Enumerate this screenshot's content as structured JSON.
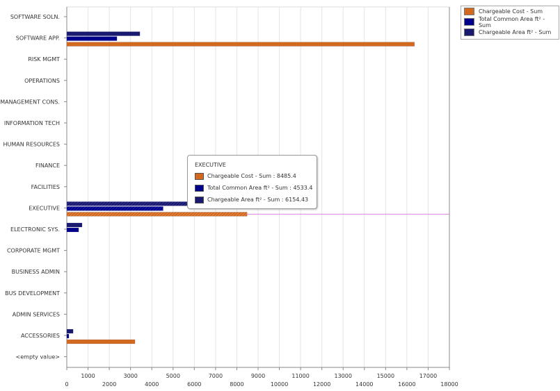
{
  "chart_data": {
    "type": "bar",
    "orientation": "horizontal",
    "categories": [
      "SOFTWARE SOLN.",
      "SOFTWARE APP.",
      "RISK MGMT",
      "OPERATIONS",
      "MANAGEMENT CONS.",
      "INFORMATION TECH",
      "HUMAN RESOURCES",
      "FINANCE",
      "FACILITIES",
      "EXECUTIVE",
      "ELECTRONIC SYS.",
      "CORPORATE MGMT",
      "BUSINESS ADMIN",
      "BUS DEVELOPMENT",
      "ADMIN SERVICES",
      "ACCESSORIES",
      "<empty value>"
    ],
    "series": [
      {
        "name": "Chargeable Cost - Sum",
        "color": "#d2691e",
        "values": [
          0,
          16360,
          0,
          0,
          0,
          0,
          0,
          0,
          0,
          8485.4,
          0,
          0,
          0,
          0,
          0,
          3210,
          0
        ]
      },
      {
        "name": "Total Common Area ft² - Sum",
        "color": "#00008b",
        "values": [
          0,
          2360,
          0,
          0,
          0,
          0,
          0,
          0,
          0,
          4533.4,
          560,
          0,
          0,
          0,
          0,
          100,
          0
        ]
      },
      {
        "name": "Chargeable Area ft² - Sum",
        "color": "#191970",
        "values": [
          0,
          3440,
          0,
          0,
          0,
          0,
          0,
          0,
          0,
          6154.43,
          720,
          0,
          0,
          0,
          0,
          300,
          0
        ]
      }
    ],
    "xlim": [
      0,
      18000
    ],
    "x_ticks": [
      0,
      1000,
      2000,
      3000,
      4000,
      5000,
      6000,
      7000,
      8000,
      9000,
      10000,
      11000,
      12000,
      13000,
      14000,
      15000,
      16000,
      17000,
      18000
    ],
    "grid": true,
    "legend": "top-right"
  },
  "tooltip": {
    "title": "EXECUTIVE",
    "items": [
      "Chargeable Cost - Sum : 8485.4",
      "Total Common Area ft² - Sum : 4533.4",
      "Chargeable Area ft² - Sum : 6154.43"
    ]
  }
}
